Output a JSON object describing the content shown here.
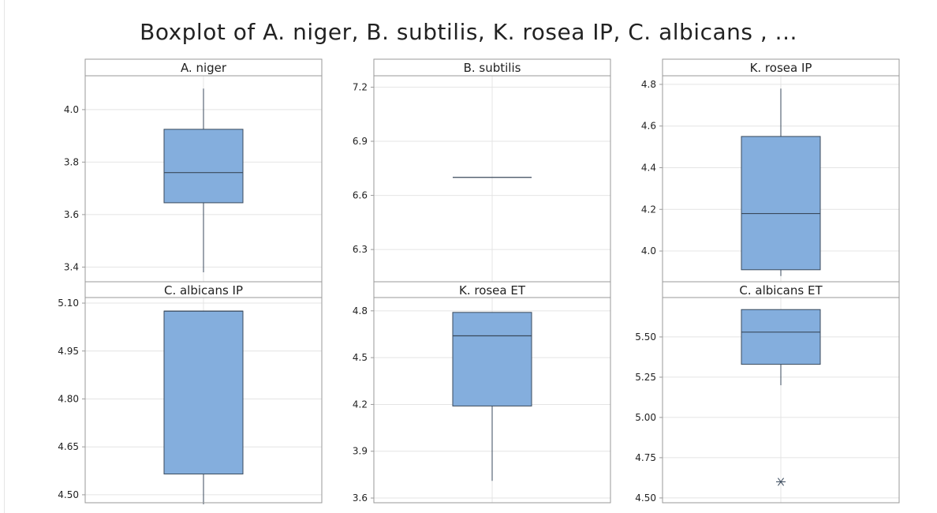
{
  "title": "Boxplot of A. niger, B. subtilis, K. rosea IP, C. albicans , ...",
  "colors": {
    "box_fill": "#84aedd",
    "box_stroke": "#3a4a5c",
    "grid": "#e4e4e4",
    "frame": "#9a9a9a",
    "text": "#222222"
  },
  "chart_data": [
    {
      "type": "boxplot",
      "title": "A. niger",
      "ylim": [
        3.35,
        4.12
      ],
      "yticks": [
        3.4,
        3.6,
        3.8,
        4.0
      ],
      "ytick_labels": [
        "3.4",
        "3.6",
        "3.8",
        "4.0"
      ],
      "whisker_low": 3.38,
      "q1": 3.645,
      "median": 3.76,
      "q3": 3.925,
      "whisker_high": 4.08,
      "outliers": []
    },
    {
      "type": "boxplot",
      "title": "B. subtilis",
      "ylim": [
        6.13,
        7.25
      ],
      "yticks": [
        6.3,
        6.6,
        6.9,
        7.2
      ],
      "ytick_labels": [
        "6.3",
        "6.6",
        "6.9",
        "7.2"
      ],
      "whisker_low": 6.7,
      "q1": 6.7,
      "median": 6.7,
      "q3": 6.7,
      "whisker_high": 6.7,
      "outliers": []
    },
    {
      "type": "boxplot",
      "title": "K. rosea IP",
      "ylim": [
        3.86,
        4.83
      ],
      "yticks": [
        4.0,
        4.2,
        4.4,
        4.6,
        4.8
      ],
      "ytick_labels": [
        "4.0",
        "4.2",
        "4.4",
        "4.6",
        "4.8"
      ],
      "whisker_low": 3.88,
      "q1": 3.91,
      "median": 4.18,
      "q3": 4.55,
      "whisker_high": 4.78,
      "outliers": []
    },
    {
      "type": "boxplot",
      "title": "C. albicans IP",
      "ylim": [
        4.48,
        5.11
      ],
      "yticks": [
        4.5,
        4.65,
        4.8,
        4.95,
        5.1
      ],
      "ytick_labels": [
        "4.50",
        "4.65",
        "4.80",
        "4.95",
        "5.10"
      ],
      "whisker_low": 4.47,
      "q1": 4.565,
      "median": 5.075,
      "q3": 5.075,
      "whisker_high": 5.075,
      "outliers": []
    },
    {
      "type": "boxplot",
      "title": "K. rosea ET",
      "ylim": [
        3.58,
        4.87
      ],
      "yticks": [
        3.6,
        3.9,
        4.2,
        4.5,
        4.8
      ],
      "ytick_labels": [
        "3.6",
        "3.9",
        "4.2",
        "4.5",
        "4.8"
      ],
      "whisker_low": 3.71,
      "q1": 4.19,
      "median": 4.64,
      "q3": 4.79,
      "whisker_high": 4.79,
      "outliers": []
    },
    {
      "type": "boxplot",
      "title": "C. albicans ET",
      "ylim": [
        4.48,
        5.73
      ],
      "yticks": [
        4.5,
        4.75,
        5.0,
        5.25,
        5.5
      ],
      "ytick_labels": [
        "4.50",
        "4.75",
        "5.00",
        "5.25",
        "5.50"
      ],
      "whisker_low": 5.2,
      "q1": 5.33,
      "median": 5.53,
      "q3": 5.67,
      "whisker_high": 5.67,
      "outliers": [
        4.6
      ]
    }
  ]
}
